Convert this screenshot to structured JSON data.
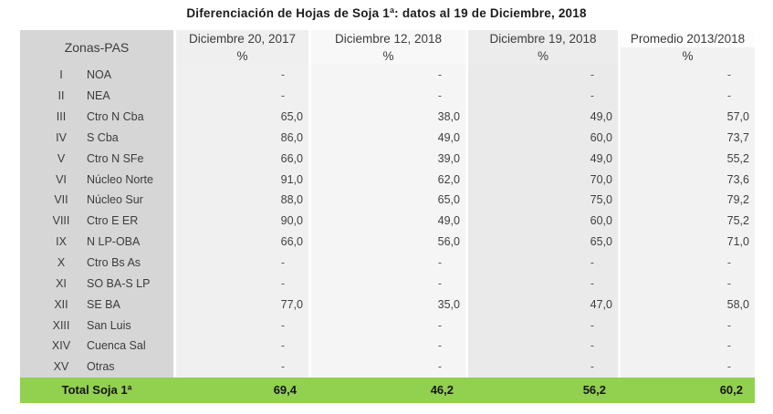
{
  "title": "Diferenciación de Hojas de Soja 1ª: datos al 19 de Diciembre, 2018",
  "colors": {
    "total_row_bg": "#92d050",
    "zone_column_bg": "#d6d6d6",
    "data_column_bg_light": "#f2f2f2",
    "data_column_bg_dark": "#eaeaea"
  },
  "chart_data": {
    "type": "table",
    "title": "Diferenciación de Hojas de Soja 1ª: datos al 19 de Diciembre, 2018",
    "columns": [
      "Zonas-PAS",
      "Diciembre 20, 2017",
      "Diciembre 12, 2018",
      "Diciembre 19, 2018",
      "Promedio 2013/2018"
    ],
    "units": [
      "",
      "%",
      "%",
      "%",
      "%"
    ],
    "rows": [
      {
        "num": "I",
        "zone": "NOA",
        "values": [
          "-",
          "-",
          "-",
          "-"
        ]
      },
      {
        "num": "II",
        "zone": "NEA",
        "values": [
          "-",
          "-",
          "-",
          "-"
        ]
      },
      {
        "num": "III",
        "zone": "Ctro N Cba",
        "values": [
          "65,0",
          "38,0",
          "49,0",
          "57,0"
        ]
      },
      {
        "num": "IV",
        "zone": "S Cba",
        "values": [
          "86,0",
          "49,0",
          "60,0",
          "73,7"
        ]
      },
      {
        "num": "V",
        "zone": "Ctro N SFe",
        "values": [
          "66,0",
          "39,0",
          "49,0",
          "55,2"
        ]
      },
      {
        "num": "VI",
        "zone": "Núcleo Norte",
        "values": [
          "91,0",
          "62,0",
          "70,0",
          "73,6"
        ]
      },
      {
        "num": "VII",
        "zone": "Núcleo Sur",
        "values": [
          "88,0",
          "65,0",
          "75,0",
          "79,2"
        ]
      },
      {
        "num": "VIII",
        "zone": "Ctro E ER",
        "values": [
          "90,0",
          "49,0",
          "60,0",
          "75,2"
        ]
      },
      {
        "num": "IX",
        "zone": "N LP-OBA",
        "values": [
          "66,0",
          "56,0",
          "65,0",
          "71,0"
        ]
      },
      {
        "num": "X",
        "zone": "Ctro Bs As",
        "values": [
          "-",
          "-",
          "-",
          "-"
        ]
      },
      {
        "num": "XI",
        "zone": "SO BA-S LP",
        "values": [
          "-",
          "-",
          "-",
          "-"
        ]
      },
      {
        "num": "XII",
        "zone": "SE BA",
        "values": [
          "77,0",
          "35,0",
          "47,0",
          "58,0"
        ]
      },
      {
        "num": "XIII",
        "zone": "San Luis",
        "values": [
          "-",
          "-",
          "-",
          "-"
        ]
      },
      {
        "num": "XIV",
        "zone": "Cuenca Sal",
        "values": [
          "-",
          "-",
          "-",
          "-"
        ]
      },
      {
        "num": "XV",
        "zone": "Otras",
        "values": [
          "-",
          "-",
          "-",
          "-"
        ]
      }
    ],
    "total": {
      "label": "Total Soja 1ª",
      "values": [
        "69,4",
        "46,2",
        "56,2",
        "60,2"
      ]
    }
  }
}
